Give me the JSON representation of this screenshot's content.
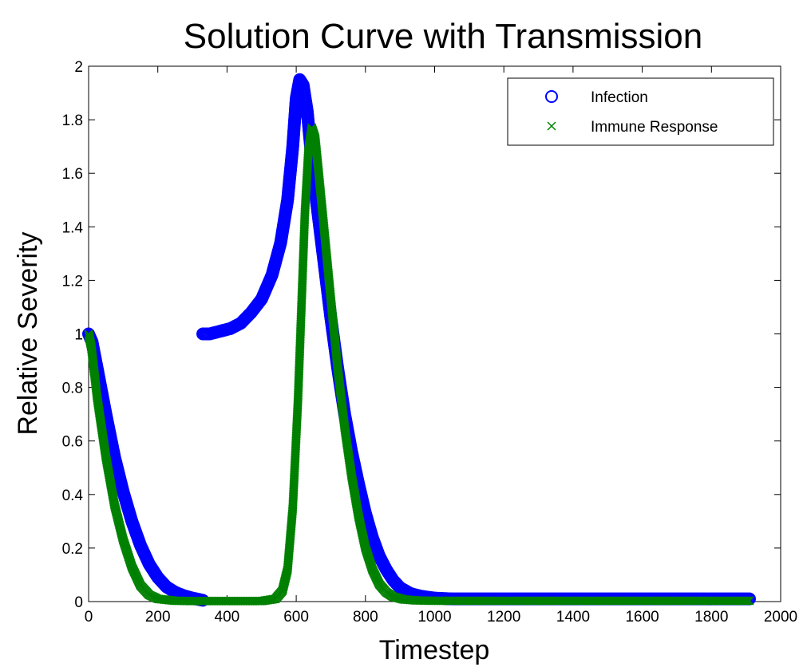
{
  "chart_data": {
    "type": "scatter",
    "title": "Solution Curve with Transmission",
    "xlabel": "Timestep",
    "ylabel": "Relative Severity",
    "xlim": [
      0,
      2000
    ],
    "ylim": [
      0,
      2
    ],
    "xticks": [
      0,
      200,
      400,
      600,
      800,
      1000,
      1200,
      1400,
      1600,
      1800,
      2000
    ],
    "yticks": [
      0,
      0.2,
      0.4,
      0.6,
      0.8,
      1,
      1.2,
      1.4,
      1.6,
      1.8,
      2
    ],
    "grid": false,
    "legend_position": "top-right",
    "series": [
      {
        "name": "Infection",
        "marker": "circle",
        "color": "#0000ff",
        "points": [
          [
            0,
            1.0
          ],
          [
            10,
            0.97
          ],
          [
            25,
            0.87
          ],
          [
            50,
            0.7
          ],
          [
            75,
            0.54
          ],
          [
            100,
            0.41
          ],
          [
            125,
            0.3
          ],
          [
            150,
            0.21
          ],
          [
            175,
            0.14
          ],
          [
            200,
            0.09
          ],
          [
            225,
            0.055
          ],
          [
            250,
            0.035
          ],
          [
            275,
            0.022
          ],
          [
            300,
            0.013
          ],
          [
            330,
            0.005
          ],
          [
            330,
            1.0
          ],
          [
            350,
            1.0
          ],
          [
            380,
            1.01
          ],
          [
            410,
            1.02
          ],
          [
            440,
            1.04
          ],
          [
            470,
            1.08
          ],
          [
            500,
            1.13
          ],
          [
            530,
            1.22
          ],
          [
            555,
            1.34
          ],
          [
            575,
            1.5
          ],
          [
            590,
            1.7
          ],
          [
            600,
            1.88
          ],
          [
            610,
            1.95
          ],
          [
            620,
            1.93
          ],
          [
            632,
            1.83
          ],
          [
            645,
            1.65
          ],
          [
            660,
            1.48
          ],
          [
            680,
            1.27
          ],
          [
            700,
            1.06
          ],
          [
            720,
            0.87
          ],
          [
            740,
            0.7
          ],
          [
            760,
            0.56
          ],
          [
            780,
            0.44
          ],
          [
            800,
            0.33
          ],
          [
            820,
            0.24
          ],
          [
            840,
            0.17
          ],
          [
            860,
            0.12
          ],
          [
            880,
            0.08
          ],
          [
            900,
            0.052
          ],
          [
            930,
            0.03
          ],
          [
            960,
            0.02
          ],
          [
            1000,
            0.013
          ],
          [
            1050,
            0.01
          ],
          [
            1100,
            0.01
          ],
          [
            1200,
            0.01
          ],
          [
            1300,
            0.01
          ],
          [
            1400,
            0.01
          ],
          [
            1500,
            0.01
          ],
          [
            1600,
            0.01
          ],
          [
            1700,
            0.01
          ],
          [
            1800,
            0.01
          ],
          [
            1910,
            0.01
          ]
        ]
      },
      {
        "name": "Immune Response",
        "marker": "x",
        "color": "#008000",
        "points": [
          [
            0,
            1.0
          ],
          [
            8,
            0.95
          ],
          [
            25,
            0.76
          ],
          [
            50,
            0.54
          ],
          [
            75,
            0.36
          ],
          [
            100,
            0.23
          ],
          [
            125,
            0.13
          ],
          [
            150,
            0.06
          ],
          [
            175,
            0.025
          ],
          [
            200,
            0.01
          ],
          [
            250,
            0.003
          ],
          [
            300,
            0.002
          ],
          [
            400,
            0.002
          ],
          [
            500,
            0.002
          ],
          [
            540,
            0.01
          ],
          [
            560,
            0.04
          ],
          [
            575,
            0.12
          ],
          [
            590,
            0.35
          ],
          [
            605,
            0.75
          ],
          [
            615,
            1.1
          ],
          [
            625,
            1.45
          ],
          [
            635,
            1.68
          ],
          [
            645,
            1.77
          ],
          [
            655,
            1.73
          ],
          [
            665,
            1.6
          ],
          [
            680,
            1.4
          ],
          [
            700,
            1.13
          ],
          [
            720,
            0.87
          ],
          [
            740,
            0.65
          ],
          [
            760,
            0.47
          ],
          [
            780,
            0.32
          ],
          [
            800,
            0.2
          ],
          [
            820,
            0.12
          ],
          [
            840,
            0.065
          ],
          [
            860,
            0.035
          ],
          [
            880,
            0.018
          ],
          [
            910,
            0.008
          ],
          [
            950,
            0.004
          ],
          [
            1000,
            0.003
          ],
          [
            1200,
            0.003
          ],
          [
            1400,
            0.003
          ],
          [
            1600,
            0.003
          ],
          [
            1800,
            0.003
          ],
          [
            1910,
            0.003
          ]
        ]
      }
    ]
  }
}
